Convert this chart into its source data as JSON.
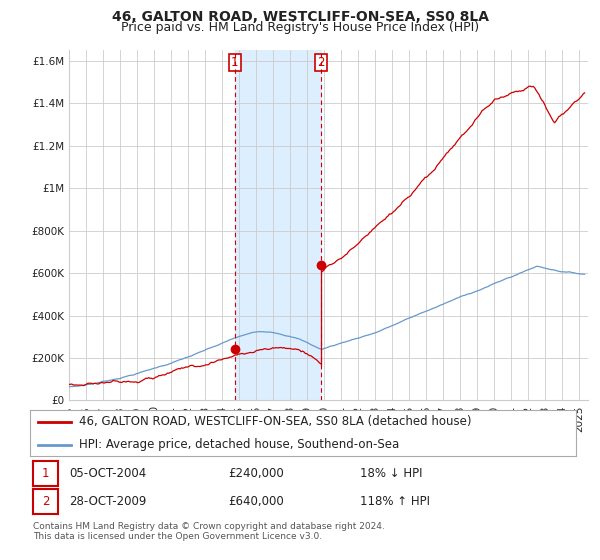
{
  "title": "46, GALTON ROAD, WESTCLIFF-ON-SEA, SS0 8LA",
  "subtitle": "Price paid vs. HM Land Registry's House Price Index (HPI)",
  "ylim": [
    0,
    1650000
  ],
  "xlim_start": 1995.0,
  "xlim_end": 2025.5,
  "yticks": [
    0,
    200000,
    400000,
    600000,
    800000,
    1000000,
    1200000,
    1400000,
    1600000
  ],
  "ytick_labels": [
    "£0",
    "£200K",
    "£400K",
    "£600K",
    "£800K",
    "£1M",
    "£1.2M",
    "£1.4M",
    "£1.6M"
  ],
  "xticks": [
    1995,
    1996,
    1997,
    1998,
    1999,
    2000,
    2001,
    2002,
    2003,
    2004,
    2005,
    2006,
    2007,
    2008,
    2009,
    2010,
    2011,
    2012,
    2013,
    2014,
    2015,
    2016,
    2017,
    2018,
    2019,
    2020,
    2021,
    2022,
    2023,
    2024,
    2025
  ],
  "transaction1_x": 2004.75,
  "transaction1_y": 240000,
  "transaction2_x": 2009.83,
  "transaction2_y": 640000,
  "shade_x1": 2004.75,
  "shade_x2": 2009.83,
  "red_color": "#cc0000",
  "blue_color": "#6699cc",
  "shade_color": "#ddeeff",
  "background_color": "#ffffff",
  "grid_color": "#cccccc",
  "legend1": "46, GALTON ROAD, WESTCLIFF-ON-SEA, SS0 8LA (detached house)",
  "legend2": "HPI: Average price, detached house, Southend-on-Sea",
  "table_row1_date": "05-OCT-2004",
  "table_row1_price": "£240,000",
  "table_row1_hpi": "18% ↓ HPI",
  "table_row2_date": "28-OCT-2009",
  "table_row2_price": "£640,000",
  "table_row2_hpi": "118% ↑ HPI",
  "footnote": "Contains HM Land Registry data © Crown copyright and database right 2024.\nThis data is licensed under the Open Government Licence v3.0.",
  "title_fontsize": 10,
  "subtitle_fontsize": 9,
  "tick_fontsize": 7.5,
  "legend_fontsize": 8.5,
  "annot_fontsize": 8.5
}
